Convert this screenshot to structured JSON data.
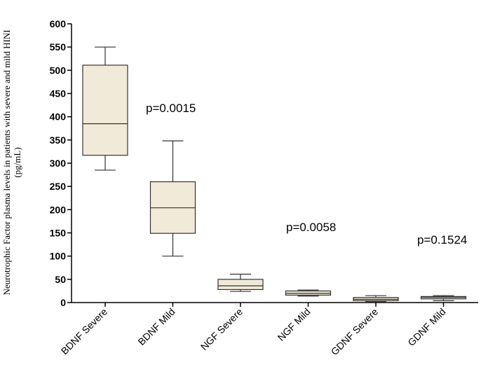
{
  "chart_data": {
    "type": "box",
    "ylabel_line1": "Neurotrophic Factor plasma levels in patients with severe and mild HINI",
    "ylabel_line2": "(pg/mL)",
    "ylim": [
      0,
      600
    ],
    "yticks": [
      0,
      50,
      100,
      150,
      200,
      250,
      300,
      350,
      400,
      450,
      500,
      550,
      600
    ],
    "box_fill": "#f2ead8",
    "categories": [
      "BDNF Severe",
      "BDNF Mild",
      "NGF Severe",
      "NGF Mild",
      "GDNF Severe",
      "GDNF Mild"
    ],
    "boxes": [
      {
        "min": 285,
        "q1": 317,
        "median": 385,
        "q3": 511,
        "max": 550
      },
      {
        "min": 100,
        "q1": 149,
        "median": 204,
        "q3": 260,
        "max": 348
      },
      {
        "min": 24,
        "q1": 28,
        "median": 36,
        "q3": 50,
        "max": 61
      },
      {
        "min": 14,
        "q1": 16,
        "median": 20,
        "q3": 25,
        "max": 27
      },
      {
        "min": 2,
        "q1": 4,
        "median": 7,
        "q3": 11,
        "max": 15
      },
      {
        "min": 4,
        "q1": 8,
        "median": 11,
        "q3": 13,
        "max": 15
      }
    ],
    "annotations": [
      "p=0.0015",
      "p=0.0058",
      "p=0.1524"
    ]
  }
}
